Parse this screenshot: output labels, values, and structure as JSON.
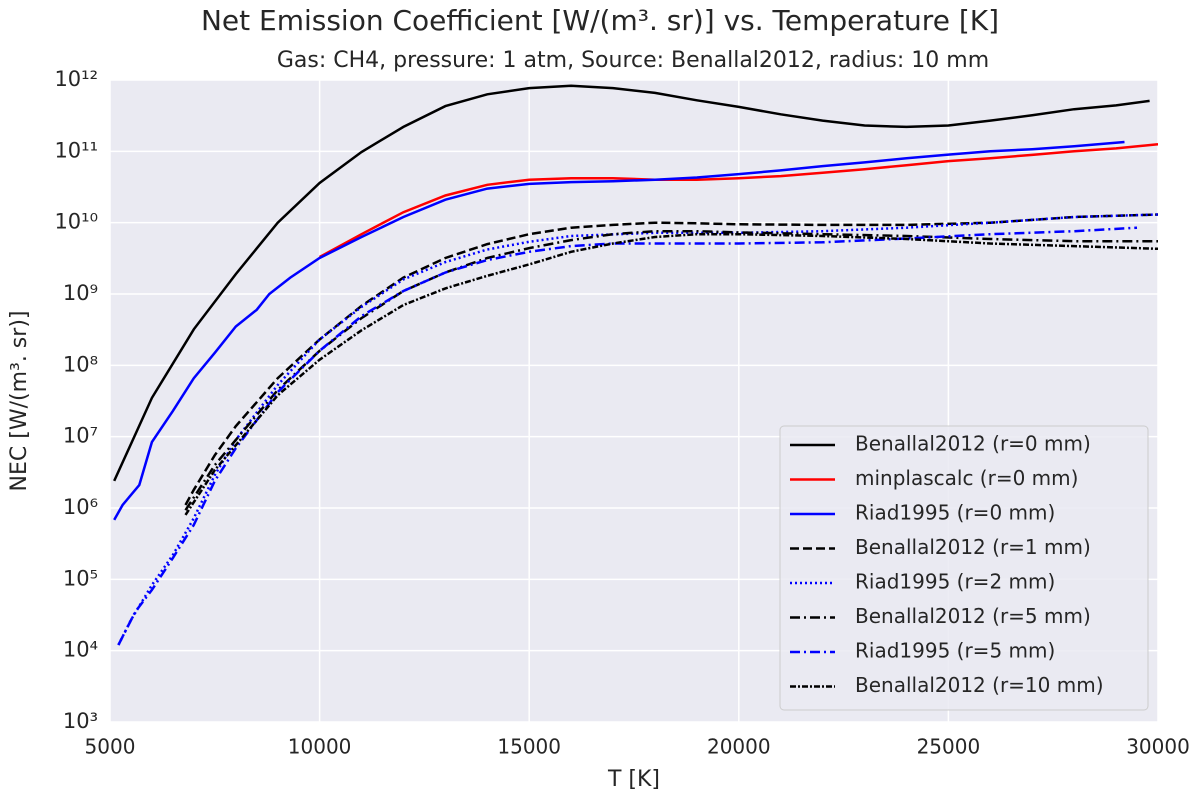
{
  "chart_data": {
    "type": "line",
    "title": "Net Emission Coefficient [W/(m³. sr)] vs. Temperature [K]",
    "subtitle": "Gas: CH4, pressure: 1 atm, Source: Benallal2012, radius: 10 mm",
    "xlabel": "T [K]",
    "ylabel": "NEC [W/(m³. sr)]",
    "xlim": [
      5000,
      30000
    ],
    "xticks": [
      5000,
      10000,
      15000,
      20000,
      25000,
      30000
    ],
    "ylim": [
      1000,
      1000000000000.0
    ],
    "yscale": "log",
    "yticks": [
      {
        "value": 1000,
        "label": "10³"
      },
      {
        "value": 10000,
        "label": "10⁴"
      },
      {
        "value": 100000,
        "label": "10⁵"
      },
      {
        "value": 1000000,
        "label": "10⁶"
      },
      {
        "value": 10000000,
        "label": "10⁷"
      },
      {
        "value": 100000000,
        "label": "10⁸"
      },
      {
        "value": 1000000000,
        "label": "10⁹"
      },
      {
        "value": 10000000000,
        "label": "10¹⁰"
      },
      {
        "value": 100000000000,
        "label": "10¹¹"
      },
      {
        "value": 1000000000000,
        "label": "10¹²"
      }
    ],
    "grid": true,
    "legend": "lower right",
    "series": [
      {
        "name": "Benallal2012 (r=0 mm)",
        "color": "#000000",
        "dash": "none",
        "x": [
          5100,
          6000,
          7000,
          8000,
          9000,
          10000,
          11000,
          12000,
          13000,
          14000,
          15000,
          16000,
          17000,
          18000,
          19000,
          20000,
          21000,
          22000,
          23000,
          24000,
          25000,
          26000,
          27000,
          28000,
          29000,
          29800
        ],
        "values": [
          2400000.0,
          35000000.0,
          320000000.0,
          1900000000.0,
          10000000000.0,
          36000000000.0,
          98000000000.0,
          220000000000.0,
          430000000000.0,
          630000000000.0,
          770000000000.0,
          830000000000.0,
          770000000000.0,
          660000000000.0,
          520000000000.0,
          420000000000.0,
          330000000000.0,
          270000000000.0,
          230000000000.0,
          220000000000.0,
          230000000000.0,
          270000000000.0,
          320000000000.0,
          390000000000.0,
          440000000000.0,
          510000000000.0
        ]
      },
      {
        "name": "minplascalc (r=0 mm)",
        "color": "#ff0000",
        "dash": "none",
        "x": [
          10000,
          11000,
          12000,
          13000,
          14000,
          15000,
          16000,
          17000,
          18000,
          19000,
          20000,
          21000,
          22000,
          23000,
          24000,
          25000,
          26000,
          27000,
          28000,
          29000,
          30000
        ],
        "values": [
          3300000000.0,
          6900000000.0,
          14000000000.0,
          24000000000.0,
          34000000000.0,
          40000000000.0,
          42000000000.0,
          42000000000.0,
          40000000000.0,
          40000000000.0,
          42000000000.0,
          45000000000.0,
          50000000000.0,
          56000000000.0,
          64000000000.0,
          73000000000.0,
          80000000000.0,
          89000000000.0,
          100000000000.0,
          110000000000.0,
          126000000000.0
        ]
      },
      {
        "name": "Riad1995 (r=0 mm)",
        "color": "#0000ff",
        "dash": "none",
        "x": [
          5100,
          5300,
          5700,
          6000,
          6500,
          7000,
          7500,
          8000,
          8500,
          8800,
          9300,
          10000,
          11000,
          12000,
          13000,
          14000,
          15000,
          16000,
          17000,
          18000,
          19000,
          20000,
          21000,
          22000,
          23000,
          24000,
          25000,
          26000,
          27000,
          28000,
          29200
        ],
        "values": [
          680000.0,
          1100000.0,
          2100000.0,
          8400000.0,
          23000000.0,
          66000000.0,
          150000000.0,
          350000000.0,
          600000000.0,
          1000000000.0,
          1700000000.0,
          3200000000.0,
          6300000000.0,
          12000000000.0,
          21000000000.0,
          30000000000.0,
          35000000000.0,
          37000000000.0,
          38000000000.0,
          40000000000.0,
          43000000000.0,
          48000000000.0,
          54000000000.0,
          62000000000.0,
          70000000000.0,
          80000000000.0,
          90000000000.0,
          100000000000.0,
          107000000000.0,
          118000000000.0,
          135000000000.0
        ]
      },
      {
        "name": "Benallal2012 (r=1 mm)",
        "color": "#000000",
        "dash": "9,4",
        "x": [
          6800,
          7000,
          7500,
          8000,
          9000,
          10000,
          11000,
          12000,
          13000,
          14000,
          15000,
          16000,
          17000,
          18000,
          19000,
          20000,
          22000,
          24000,
          26000,
          28000,
          30000
        ],
        "values": [
          1100000.0,
          1800000.0,
          5500000.0,
          14000000.0,
          66000000.0,
          230000000.0,
          680000000.0,
          1700000000.0,
          3200000000.0,
          5000000000.0,
          6900000000.0,
          8500000000.0,
          9300000000.0,
          10000000000.0,
          9800000000.0,
          9500000000.0,
          9300000000.0,
          9300000000.0,
          10000000000.0,
          12000000000.0,
          13000000000.0
        ]
      },
      {
        "name": "Riad1995 (r=2 mm)",
        "color": "#0000ff",
        "dash": "2,3",
        "x": [
          5200,
          5500,
          6000,
          6500,
          7000,
          7500,
          8000,
          9000,
          10000,
          11000,
          12000,
          13000,
          14000,
          15000,
          16000,
          18000,
          20000,
          22000,
          24000,
          26000,
          28000,
          30000
        ],
        "values": [
          12000.0,
          27000.0,
          83000.0,
          220000.0,
          720000.0,
          2900000.0,
          9000000.0,
          53000000.0,
          230000000.0,
          660000000.0,
          1600000000.0,
          2800000000.0,
          4200000000.0,
          5400000000.0,
          6500000000.0,
          7200000000.0,
          7200000000.0,
          7600000000.0,
          8500000000.0,
          10000000000.0,
          12000000000.0,
          13000000000.0
        ]
      },
      {
        "name": "Benallal2012 (r=5 mm)",
        "color": "#000000",
        "dash": "10,4,2,4",
        "x": [
          6800,
          7500,
          8000,
          9000,
          10000,
          11000,
          12000,
          13000,
          14000,
          15000,
          16000,
          17000,
          18000,
          19000,
          20000,
          22000,
          24000,
          26000,
          28000,
          30000
        ],
        "values": [
          930000.0,
          4000000.0,
          9000000.0,
          45000000.0,
          160000000.0,
          460000000.0,
          1100000000.0,
          2000000000.0,
          3200000000.0,
          4400000000.0,
          5700000000.0,
          6900000000.0,
          7600000000.0,
          7600000000.0,
          7300000000.0,
          6900000000.0,
          6500000000.0,
          5900000000.0,
          5500000000.0,
          5500000000.0
        ]
      },
      {
        "name": "Riad1995 (r=5 mm)",
        "color": "#0000ff",
        "dash": "10,4,2,4",
        "x": [
          5200,
          5600,
          6000,
          6500,
          7000,
          7500,
          8000,
          9000,
          10000,
          11000,
          12000,
          13000,
          14000,
          15000,
          16000,
          17000,
          18000,
          20000,
          22000,
          24000,
          26000,
          28000,
          29500
        ],
        "values": [
          12000.0,
          35000.0,
          71000.0,
          200000.0,
          580000.0,
          2400000.0,
          6900000.0,
          42000000.0,
          160000000.0,
          490000000.0,
          1100000000.0,
          2000000000.0,
          3000000000.0,
          3900000000.0,
          4700000000.0,
          5100000000.0,
          5100000000.0,
          5100000000.0,
          5300000000.0,
          6000000000.0,
          6900000000.0,
          7600000000.0,
          8500000000.0
        ]
      },
      {
        "name": "Benallal2012 (r=10 mm)",
        "color": "#000000",
        "dash": "6,2,2,2",
        "x": [
          6800,
          7500,
          8000,
          9000,
          10000,
          11000,
          12000,
          13000,
          14000,
          15000,
          16000,
          17000,
          18000,
          19000,
          20000,
          22000,
          24000,
          26000,
          28000,
          30000
        ],
        "values": [
          800000.0,
          3400000.0,
          7600000.0,
          38000000.0,
          120000000.0,
          310000000.0,
          700000000.0,
          1200000000.0,
          1800000000.0,
          2600000000.0,
          3900000000.0,
          5100000000.0,
          6300000000.0,
          6900000000.0,
          6900000000.0,
          6500000000.0,
          5900000000.0,
          5100000000.0,
          4700000000.0,
          4300000000.0
        ]
      }
    ]
  }
}
